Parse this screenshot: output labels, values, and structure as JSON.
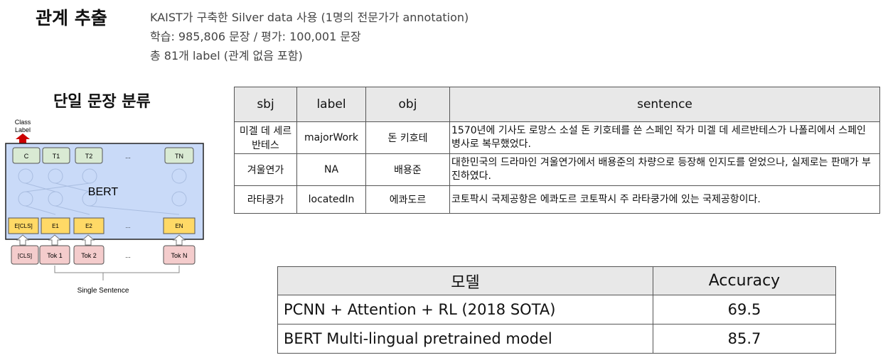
{
  "header": {
    "title": "관계 추출",
    "info_lines": [
      "KAIST가 구축한 Silver data 사용 (1명의 전문가가 annotation)",
      "학습: 985,806 문장 / 평가: 100,001 문장",
      "총 81개 label (관계 없음 포함)"
    ]
  },
  "diagram": {
    "heading": "단일 문장 분류",
    "class_label": [
      "Class",
      "Label"
    ],
    "top_tokens": [
      "C",
      "T1",
      "T2",
      "...",
      "TN"
    ],
    "model_name": "BERT",
    "embeddings": [
      "E[CLS]",
      "E1",
      "E2",
      "...",
      "EN"
    ],
    "input_tokens": [
      "[CLS]",
      "Tok 1",
      "Tok 2",
      "...",
      "Tok N"
    ],
    "bottom_label": "Single Sentence",
    "colors": {
      "box_fill": "#c9daf8",
      "top_token": "#d9ead3",
      "embedding": "#ffd966",
      "input": "#f4cccc",
      "arrow": "#cc0000"
    }
  },
  "relation_table": {
    "headers": [
      "sbj",
      "label",
      "obj",
      "sentence"
    ],
    "rows": [
      [
        "미겔 데 세르반테스",
        "majorWork",
        "돈 키호테",
        "1570년에 기사도 로망스 소설 돈 키호테를 쓴 스페인 작가 미겔 데 세르반테스가 나폴리에서 스페인 병사로 복무했었다."
      ],
      [
        "겨울연가",
        "NA",
        "배용준",
        "대한민국의 드라마인 겨울연가에서 배용준의 차량으로 등장해 인지도를 얻었으나, 실제로는 판매가 부진하였다."
      ],
      [
        "라타쿵가",
        "locatedIn",
        "에콰도르",
        "코토팍시 국제공항은 에콰도르 코토팍시 주 라타쿵가에 있는 국제공항이다."
      ]
    ]
  },
  "accuracy_table": {
    "headers": [
      "모델",
      "Accuracy"
    ],
    "rows": [
      [
        "PCNN + Attention + RL (2018 SOTA)",
        "69.5"
      ],
      [
        "BERT Multi-lingual pretrained model",
        "85.7"
      ]
    ]
  }
}
